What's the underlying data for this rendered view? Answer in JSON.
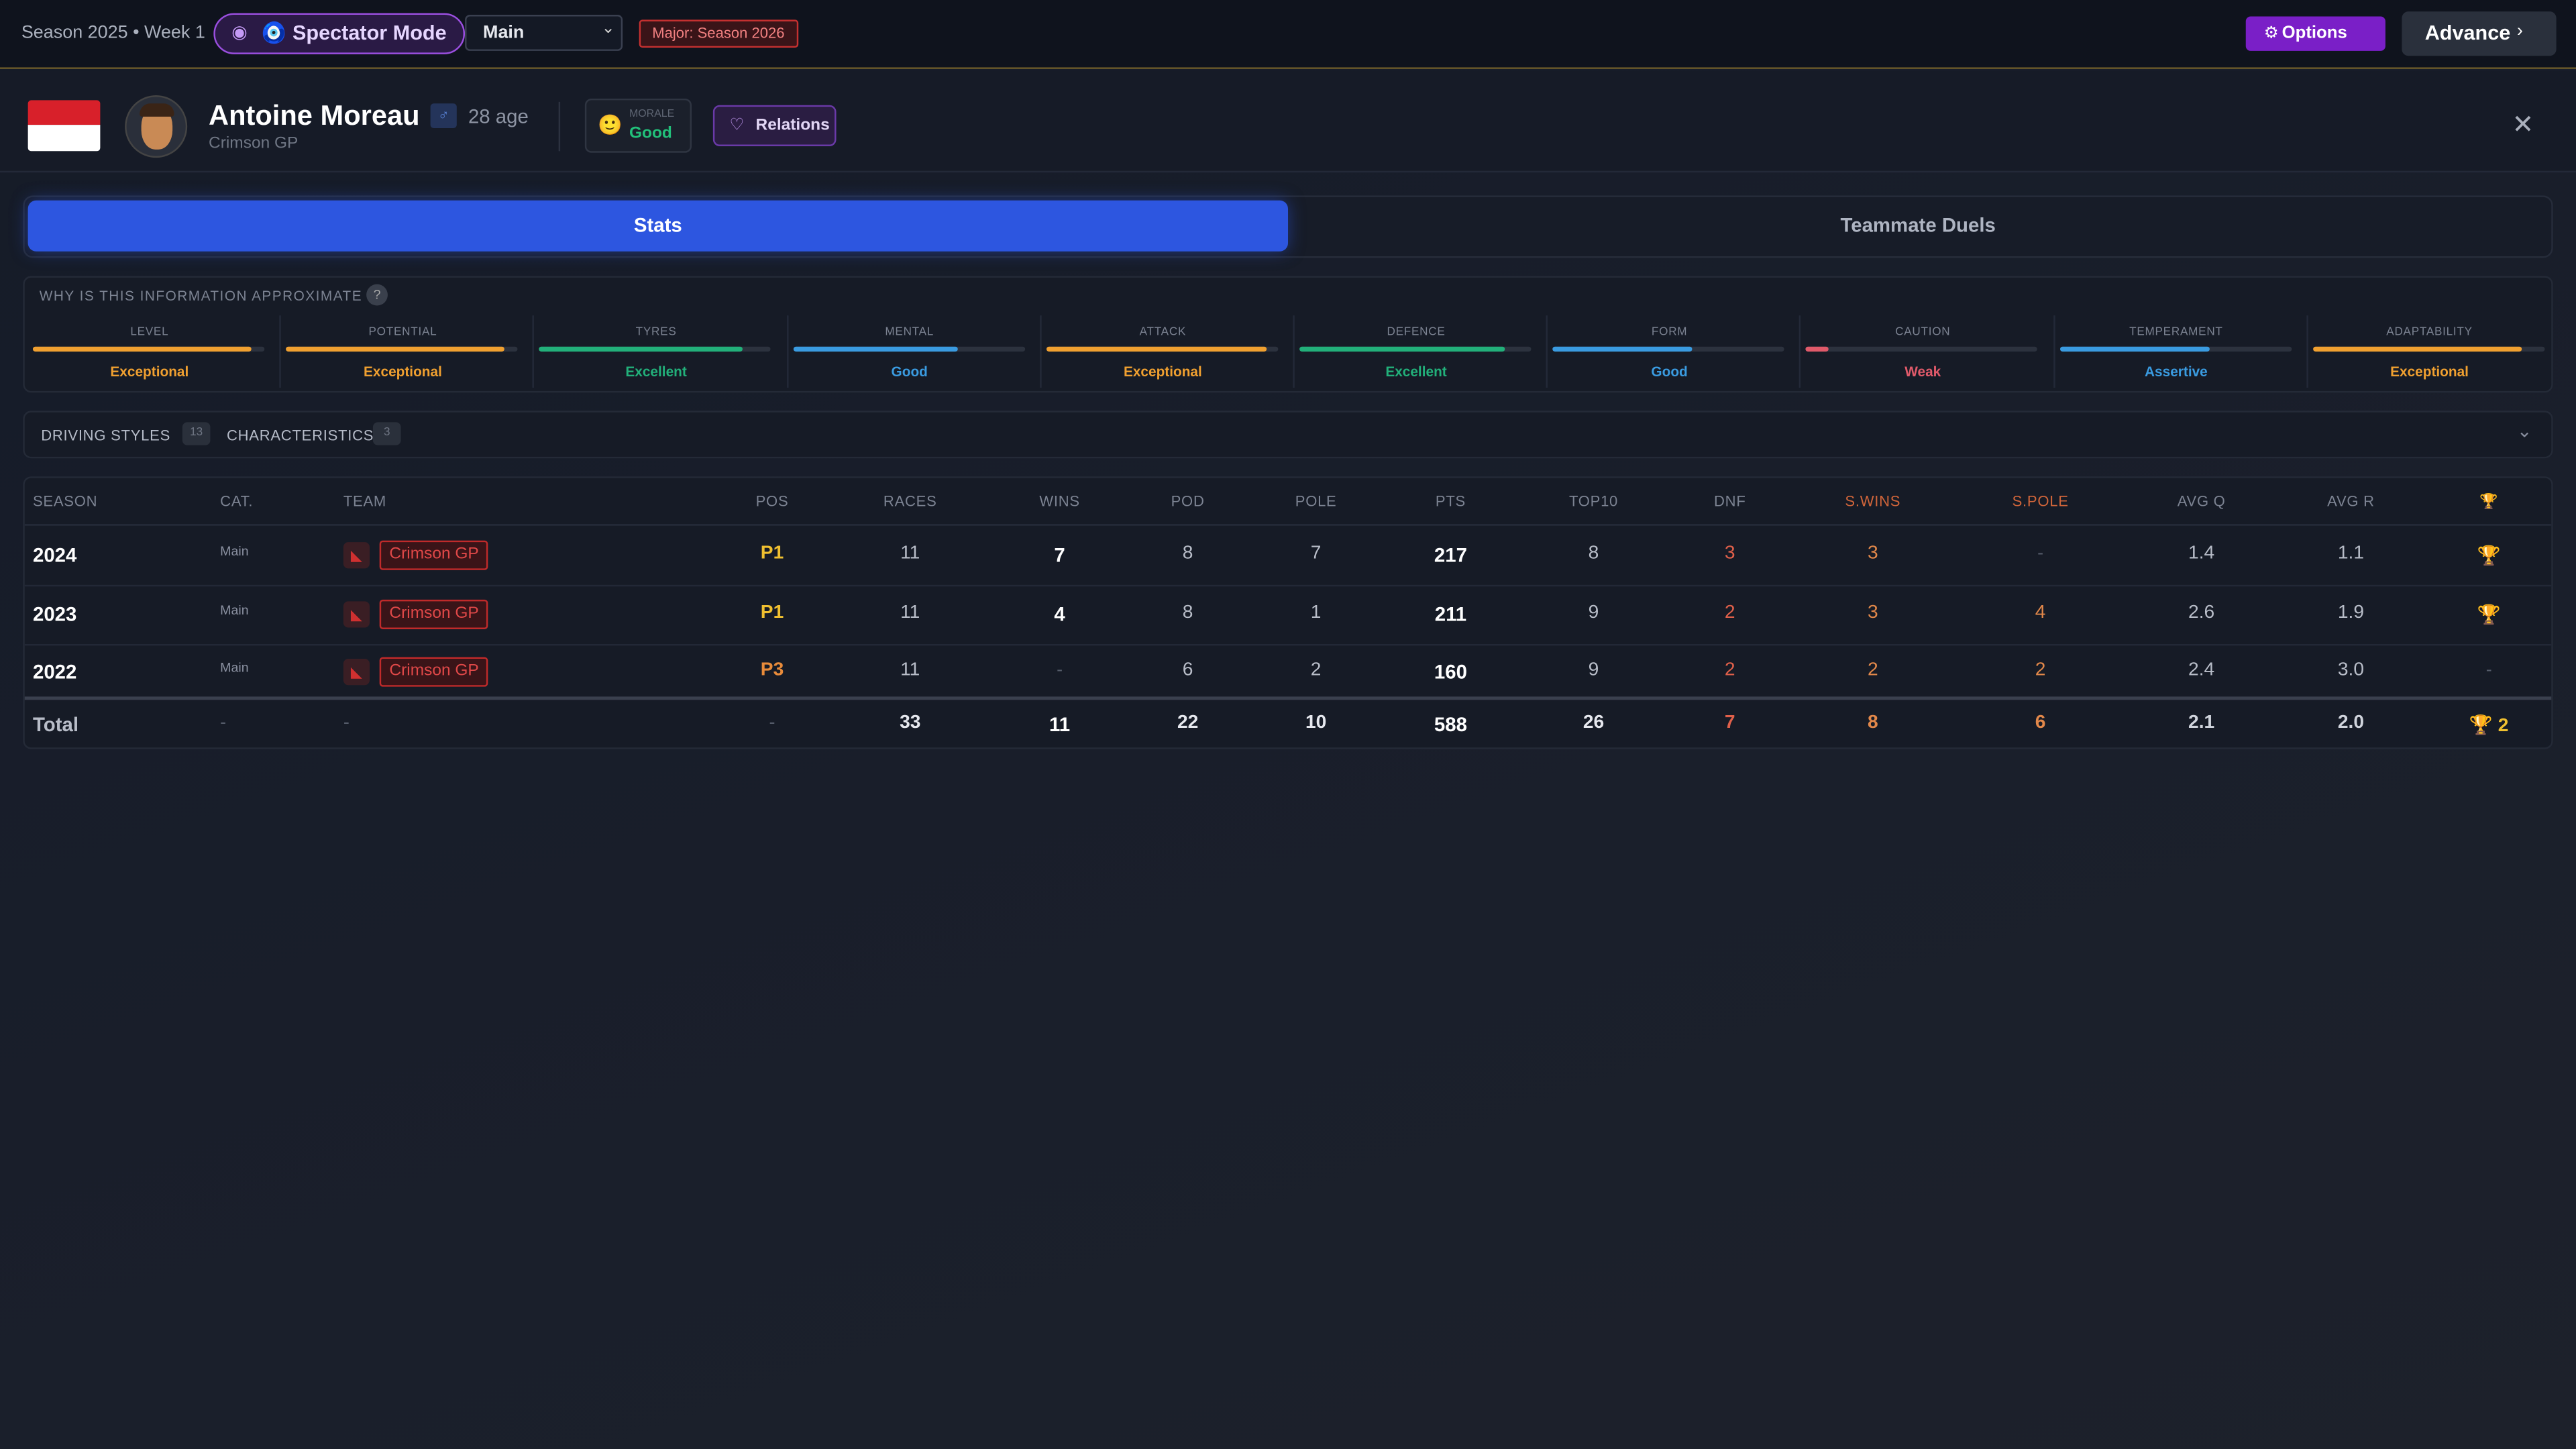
{
  "header": {
    "season": "Season 2025 • Week 1",
    "spectator": "🧿 Spectator Mode",
    "select": "Main",
    "badge": "Major: Season 2026",
    "options": "Options",
    "advance": "Advance"
  },
  "driver": {
    "name": "Antoine Moreau",
    "gender": "♂",
    "age": "28 age",
    "team": "Crimson GP",
    "morale_label": "MORALE",
    "morale": "Good",
    "relations": "Relations"
  },
  "tabs": [
    "Stats",
    "Teammate Duels"
  ],
  "attributes": {
    "note": "WHY IS THIS INFORMATION APPROXIMATE",
    "help": "?",
    "items": [
      {
        "name": "LEVEL",
        "rating": "Exceptional",
        "level": 94,
        "color": "#f0a030"
      },
      {
        "name": "POTENTIAL",
        "rating": "Exceptional",
        "level": 94,
        "color": "#f0a030"
      },
      {
        "name": "TYRES",
        "rating": "Excellent",
        "level": 88,
        "color": "#22b07a"
      },
      {
        "name": "MENTAL",
        "rating": "Good",
        "level": 71,
        "color": "#3a9be0"
      },
      {
        "name": "ATTACK",
        "rating": "Exceptional",
        "level": 95,
        "color": "#f0a030"
      },
      {
        "name": "DEFENCE",
        "rating": "Excellent",
        "level": 89,
        "color": "#22b07a"
      },
      {
        "name": "FORM",
        "rating": "Good",
        "level": 60,
        "color": "#3a9be0"
      },
      {
        "name": "CAUTION",
        "rating": "Weak",
        "level": 10,
        "color": "#e05a6a"
      },
      {
        "name": "TEMPERAMENT",
        "rating": "Assertive",
        "level": 65,
        "color": "#3a9be0"
      },
      {
        "name": "ADAPTABILITY",
        "rating": "Exceptional",
        "level": 90,
        "color": "#f0a030"
      }
    ]
  },
  "sections": [
    {
      "label": "DRIVING STYLES",
      "count": "13"
    },
    {
      "label": "CHARACTERISTICS",
      "count": "3"
    }
  ],
  "table": {
    "headers": [
      "SEASON",
      "CAT.",
      "TEAM",
      "POS",
      "RACES",
      "WINS",
      "POD",
      "POLE",
      "PTS",
      "TOP10",
      "DNF",
      "S.WINS",
      "S.POLE",
      "AVG Q",
      "AVG R",
      "🏆"
    ],
    "rows": [
      [
        "2024",
        "Main",
        "Crimson GP",
        "P1",
        "11",
        "7",
        "8",
        "7",
        "217",
        "8",
        "3",
        "3",
        "-",
        "1.4",
        "1.1",
        "🏆"
      ],
      [
        "2023",
        "Main",
        "Crimson GP",
        "P1",
        "11",
        "4",
        "8",
        "1",
        "211",
        "9",
        "2",
        "3",
        "4",
        "2.6",
        "1.9",
        "🏆"
      ],
      [
        "2022",
        "Main",
        "Crimson GP",
        "P3",
        "11",
        "-",
        "6",
        "2",
        "160",
        "9",
        "2",
        "2",
        "2",
        "2.4",
        "3.0",
        "-"
      ]
    ],
    "total": [
      "Total",
      "-",
      "-",
      "-",
      "33",
      "11",
      "22",
      "10",
      "588",
      "26",
      "7",
      "8",
      "6",
      "2.1",
      "2.0",
      "🏆 2"
    ]
  }
}
